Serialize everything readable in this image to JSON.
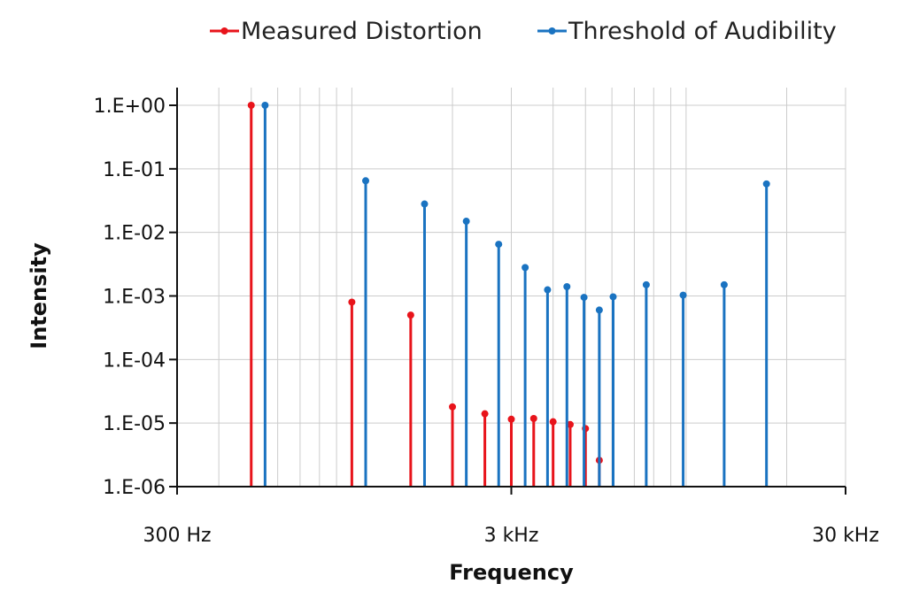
{
  "chart_data": {
    "type": "stem",
    "title": "",
    "xlabel": "Frequency",
    "ylabel": "Intensity",
    "x_scale": "log",
    "y_scale": "log",
    "xlim_hz": [
      300,
      30000
    ],
    "ylim": [
      1e-06,
      1
    ],
    "x_tick_values": [
      300,
      3000,
      30000
    ],
    "x_tick_labels": [
      "300 Hz",
      "3 kHz",
      "30 kHz"
    ],
    "y_tick_values": [
      1,
      0.1,
      0.01,
      0.001,
      0.0001,
      1e-05,
      1e-06
    ],
    "y_tick_labels": [
      "1.E+00",
      "1.E-01",
      "1.E-02",
      "1.E-03",
      "1.E-04",
      "1.E-05",
      "1.E-06"
    ],
    "grid": true,
    "legend_position": "top",
    "series": [
      {
        "name": "Measured Distortion",
        "color": "#e8141b",
        "points": [
          {
            "x": 500,
            "y": 1.0
          },
          {
            "x": 1000,
            "y": 0.0008
          },
          {
            "x": 1500,
            "y": 0.0005
          },
          {
            "x": 2000,
            "y": 1.8e-05
          },
          {
            "x": 2500,
            "y": 1.4e-05
          },
          {
            "x": 3000,
            "y": 1.15e-05
          },
          {
            "x": 3500,
            "y": 1.18e-05
          },
          {
            "x": 4000,
            "y": 1.05e-05
          },
          {
            "x": 4500,
            "y": 9.5e-06
          },
          {
            "x": 5000,
            "y": 8.2e-06
          },
          {
            "x": 5500,
            "y": 2.6e-06
          }
        ]
      },
      {
        "name": "Threshold of Audibility",
        "color": "#1a73c1",
        "points": [
          {
            "x": 550,
            "y": 1.0
          },
          {
            "x": 1100,
            "y": 0.065
          },
          {
            "x": 1650,
            "y": 0.028
          },
          {
            "x": 2200,
            "y": 0.015
          },
          {
            "x": 2750,
            "y": 0.0065
          },
          {
            "x": 3300,
            "y": 0.0028
          },
          {
            "x": 3850,
            "y": 0.00125
          },
          {
            "x": 4400,
            "y": 0.0014
          },
          {
            "x": 4950,
            "y": 0.00095
          },
          {
            "x": 5500,
            "y": 0.0006
          },
          {
            "x": 6050,
            "y": 0.00097
          },
          {
            "x": 7600,
            "y": 0.0015
          },
          {
            "x": 9800,
            "y": 0.00103
          },
          {
            "x": 13000,
            "y": 0.0015
          },
          {
            "x": 17400,
            "y": 0.058
          }
        ]
      }
    ]
  }
}
